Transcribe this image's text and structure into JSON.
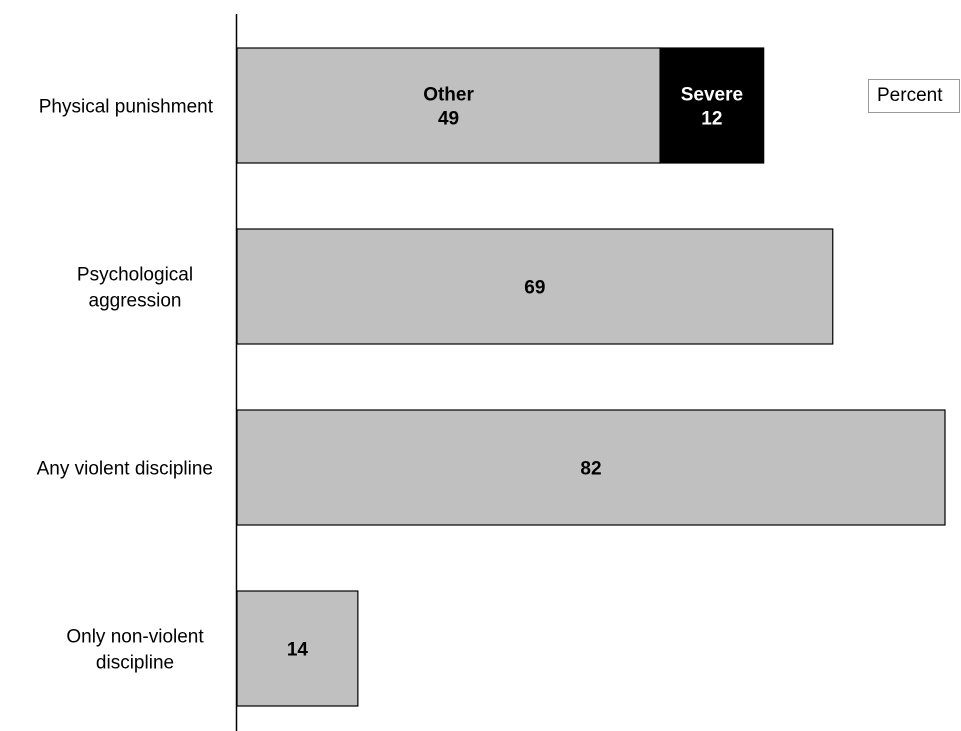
{
  "chart_data": {
    "type": "bar",
    "orientation": "horizontal",
    "stacked": true,
    "categories": [
      [
        "Physical punishment"
      ],
      [
        "Psychological",
        "aggression"
      ],
      [
        "Any violent discipline"
      ],
      [
        "Only non-violent",
        "discipline"
      ]
    ],
    "series": [
      {
        "name": "Other",
        "color": "#c0c0c0",
        "values": [
          49,
          69,
          82,
          14
        ]
      },
      {
        "name": "Severe",
        "color": "#000000",
        "values": [
          12,
          0,
          0,
          0
        ]
      }
    ],
    "segment_labels": [
      [
        [
          "Other",
          "49"
        ],
        [
          "Severe",
          "12"
        ]
      ],
      [
        [
          "69"
        ]
      ],
      [
        [
          "82"
        ]
      ],
      [
        [
          "14"
        ]
      ]
    ],
    "xlim": [
      0,
      82
    ],
    "grid": false,
    "legend": {
      "text": "Percent",
      "placement": "top-right"
    }
  }
}
